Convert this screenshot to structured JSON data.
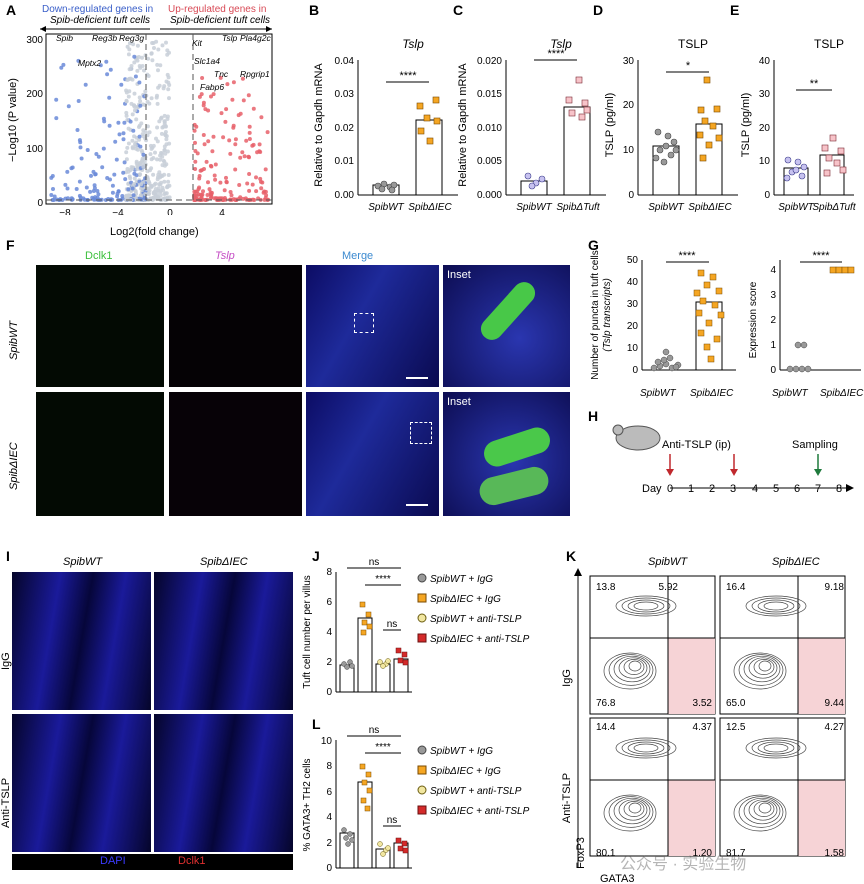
{
  "panels": {
    "A": {
      "label": "A",
      "header_down": "Down-regulated genes in",
      "header_down2": "Spib-deficient tuft cells",
      "header_up": "Up-regulated genes in",
      "header_up2": "Spib-deficient tuft cells",
      "ylabel": "−Log10 (P value)",
      "xlabel": "Log2(fold change)",
      "yticks": [
        "0",
        "100",
        "200",
        "300"
      ],
      "xticks": [
        "−8",
        "−4",
        "0",
        "4"
      ],
      "genes_down": [
        "Spib",
        "Reg3b",
        "Reg3g",
        "Mptx2"
      ],
      "genes_up": [
        "Kit",
        "Tslp",
        "Pla4g2c",
        "Slc1a4",
        "Tnc",
        "Rpgrip1",
        "Fabp6"
      ]
    },
    "B": {
      "label": "B",
      "title": "Tslp",
      "ylabel": "Relative to Gapdh mRNA",
      "yticks": [
        "0.00",
        "0.01",
        "0.02",
        "0.03",
        "0.04"
      ],
      "x": [
        "SpibWT",
        "SpibΔIEC"
      ],
      "sig": "****"
    },
    "C": {
      "label": "C",
      "title": "Tslp",
      "ylabel": "Relative to Gapdh mRNA",
      "yticks": [
        "0.000",
        "0.005",
        "0.010",
        "0.015",
        "0.020"
      ],
      "x": [
        "SpibWT",
        "SpibΔTuft"
      ],
      "sig": "****"
    },
    "D": {
      "label": "D",
      "title": "TSLP",
      "ylabel": "TSLP (pg/ml)",
      "yticks": [
        "0",
        "10",
        "20",
        "30"
      ],
      "x": [
        "SpibWT",
        "SpibΔIEC"
      ],
      "sig": "*"
    },
    "E": {
      "label": "E",
      "title": "TSLP",
      "ylabel": "TSLP (pg/ml)",
      "yticks": [
        "0",
        "10",
        "20",
        "30",
        "40"
      ],
      "x": [
        "SpibWT",
        "SpibΔTuft"
      ],
      "sig": "**"
    },
    "F": {
      "label": "F",
      "cols": [
        "Dclk1",
        "Tslp",
        "Merge",
        "Inset"
      ],
      "rows": [
        "SpibWT",
        "SpibΔIEC"
      ],
      "inset": "Inset"
    },
    "G": {
      "label": "G",
      "ylabel1": "Number of puncta in tuft cells",
      "ylabel1b": "(Tslp transcripts)",
      "yticks1": [
        "0",
        "10",
        "20",
        "30",
        "40",
        "50"
      ],
      "ylabel2": "Expression score",
      "yticks2": [
        "0",
        "1",
        "2",
        "3",
        "4"
      ],
      "x": [
        "SpibWT",
        "SpibΔIEC"
      ],
      "sig": "****"
    },
    "H": {
      "label": "H",
      "treatment": "Anti-TSLP (ip)",
      "sampling": "Sampling",
      "day_label": "Day",
      "days": [
        "0",
        "1",
        "2",
        "3",
        "4",
        "5",
        "6",
        "7",
        "8"
      ]
    },
    "I": {
      "label": "I",
      "cols": [
        "SpibWT",
        "SpibΔIEC"
      ],
      "rows": [
        "IgG",
        "Anti-TSLP"
      ],
      "legend_dapi": "DAPI",
      "legend_dclk1": "Dclk1"
    },
    "J": {
      "label": "J",
      "ylabel": "Tuft cell number per villus",
      "yticks": [
        "0",
        "2",
        "4",
        "6",
        "8"
      ],
      "sig_top": "ns",
      "sig_mid": "****",
      "sig_low": "ns",
      "legend": [
        "SpibWT + IgG",
        "SpibΔIEC + IgG",
        "SpibWT + anti-TSLP",
        "SpibΔIEC + anti-TSLP"
      ]
    },
    "K": {
      "label": "K",
      "cols": [
        "SpibWT",
        "SpibΔIEC"
      ],
      "rows": [
        "IgG",
        "Anti-TSLP"
      ],
      "xlabel": "GATA3",
      "ylabel": "FoxP3",
      "quads": [
        [
          "13.8",
          "5.92",
          "76.8",
          "3.52"
        ],
        [
          "16.4",
          "9.18",
          "65.0",
          "9.44"
        ],
        [
          "14.4",
          "4.37",
          "80.1",
          "1.20"
        ],
        [
          "12.5",
          "4.27",
          "81.7",
          "1.58"
        ]
      ]
    },
    "L": {
      "label": "L",
      "ylabel": "% GATA3+ TH2 cells",
      "yticks": [
        "0",
        "2",
        "4",
        "6",
        "8",
        "10"
      ],
      "sig_top": "ns",
      "sig_mid": "****",
      "sig_low": "ns",
      "legend": [
        "SpibWT + IgG",
        "SpibΔIEC + IgG",
        "SpibWT + anti-TSLP",
        "SpibΔIEC + anti-TSLP"
      ]
    },
    "watermark": "公众号 · 实验生物"
  },
  "chart_data": [
    {
      "type": "bar",
      "panel": "B",
      "categories": [
        "SpibWT",
        "SpibΔIEC"
      ],
      "values": [
        0.003,
        0.022
      ],
      "ylim": [
        0,
        0.04
      ],
      "title": "Tslp",
      "ylabel": "Relative to Gapdh mRNA"
    },
    {
      "type": "bar",
      "panel": "C",
      "categories": [
        "SpibWT",
        "SpibΔTuft"
      ],
      "values": [
        0.002,
        0.013
      ],
      "ylim": [
        0,
        0.02
      ],
      "title": "Tslp",
      "ylabel": "Relative to Gapdh mRNA"
    },
    {
      "type": "bar",
      "panel": "D",
      "categories": [
        "SpibWT",
        "SpibΔIEC"
      ],
      "values": [
        11,
        16
      ],
      "ylim": [
        0,
        30
      ],
      "title": "TSLP",
      "ylabel": "TSLP (pg/ml)"
    },
    {
      "type": "bar",
      "panel": "E",
      "categories": [
        "SpibWT",
        "SpibΔTuft"
      ],
      "values": [
        8,
        12
      ],
      "ylim": [
        0,
        40
      ],
      "title": "TSLP",
      "ylabel": "TSLP (pg/ml)"
    },
    {
      "type": "bar",
      "panel": "G1",
      "categories": [
        "SpibWT",
        "SpibΔIEC"
      ],
      "values": [
        1,
        31
      ],
      "ylim": [
        0,
        50
      ]
    },
    {
      "type": "bar",
      "panel": "G2",
      "categories": [
        "SpibWT",
        "SpibΔIEC"
      ],
      "values": [
        0.1,
        4
      ],
      "ylim": [
        0,
        4.5
      ]
    },
    {
      "type": "bar",
      "panel": "J",
      "categories": [
        "SpibWT + IgG",
        "SpibΔIEC + IgG",
        "SpibWT + anti-TSLP",
        "SpibΔIEC + anti-TSLP"
      ],
      "values": [
        1.8,
        4.9,
        1.9,
        2.2
      ],
      "ylim": [
        0,
        8
      ]
    },
    {
      "type": "bar",
      "panel": "L",
      "categories": [
        "SpibWT + IgG",
        "SpibΔIEC + IgG",
        "SpibWT + anti-TSLP",
        "SpibΔIEC + anti-TSLP"
      ],
      "values": [
        2.8,
        6.8,
        1.5,
        2.0
      ],
      "ylim": [
        0,
        10
      ]
    }
  ]
}
